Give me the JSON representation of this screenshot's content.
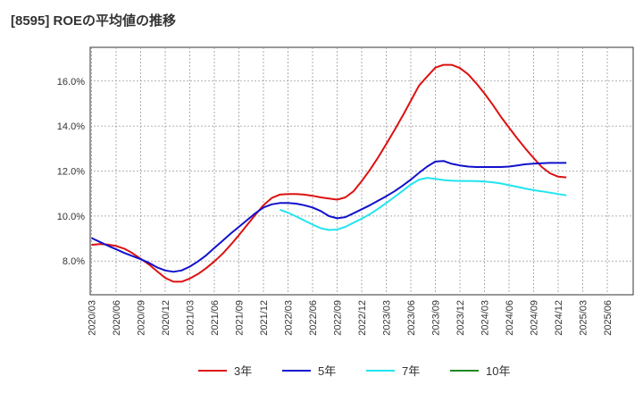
{
  "chart_data": {
    "type": "line",
    "title": "[8595]  ROEの平均値の推移",
    "xlabel": "",
    "ylabel": "",
    "ylim": [
      6.5,
      17.5
    ],
    "y_ticks": [
      8.0,
      10.0,
      12.0,
      14.0,
      16.0
    ],
    "y_tick_labels": [
      "8.0%",
      "10.0%",
      "12.0%",
      "14.0%",
      "16.0%"
    ],
    "grid": true,
    "legend_position": "bottom",
    "x_ticks": [
      "2020/03",
      "2020/06",
      "2020/09",
      "2020/12",
      "2021/03",
      "2021/06",
      "2021/09",
      "2021/12",
      "2022/03",
      "2022/06",
      "2022/09",
      "2022/12",
      "2023/03",
      "2023/06",
      "2023/09",
      "2023/12",
      "2024/03",
      "2024/06",
      "2024/09",
      "2024/12",
      "2025/03",
      "2025/06"
    ],
    "series": [
      {
        "name": "3年",
        "color": "#dd1111",
        "start_index": 0,
        "values": [
          8.72,
          8.75,
          8.73,
          8.67,
          8.55,
          8.35,
          8.1,
          7.85,
          7.55,
          7.25,
          7.08,
          7.08,
          7.22,
          7.42,
          7.68,
          7.98,
          8.32,
          8.72,
          9.15,
          9.6,
          10.05,
          10.48,
          10.8,
          10.95,
          10.98,
          10.98,
          10.95,
          10.9,
          10.83,
          10.78,
          10.73,
          10.83,
          11.1,
          11.55,
          12.05,
          12.6,
          13.2,
          13.82,
          14.45,
          15.12,
          15.8,
          16.2,
          16.6,
          16.72,
          16.72,
          16.58,
          16.3,
          15.9,
          15.45,
          14.95,
          14.42,
          13.93,
          13.45,
          13.0,
          12.58,
          12.18,
          11.9,
          11.75,
          11.72
        ]
      },
      {
        "name": "5年",
        "color": "#1111cc",
        "start_index": 0,
        "values": [
          9.02,
          8.85,
          8.68,
          8.52,
          8.36,
          8.22,
          8.08,
          7.92,
          7.72,
          7.58,
          7.52,
          7.58,
          7.75,
          7.98,
          8.25,
          8.58,
          8.9,
          9.22,
          9.52,
          9.82,
          10.12,
          10.38,
          10.52,
          10.58,
          10.58,
          10.55,
          10.48,
          10.38,
          10.22,
          10.0,
          9.9,
          9.95,
          10.12,
          10.3,
          10.48,
          10.68,
          10.88,
          11.1,
          11.35,
          11.62,
          11.92,
          12.2,
          12.42,
          12.45,
          12.32,
          12.25,
          12.2,
          12.18,
          12.18,
          12.18,
          12.18,
          12.2,
          12.25,
          12.3,
          12.33,
          12.35,
          12.36,
          12.36,
          12.36
        ]
      },
      {
        "name": "7年",
        "color": "#22e4f0",
        "start_index": 23,
        "values": [
          10.28,
          10.15,
          9.98,
          9.8,
          9.62,
          9.46,
          9.38,
          9.4,
          9.52,
          9.7,
          9.88,
          10.08,
          10.32,
          10.58,
          10.85,
          11.12,
          11.4,
          11.62,
          11.7,
          11.65,
          11.6,
          11.57,
          11.56,
          11.56,
          11.55,
          11.53,
          11.5,
          11.45,
          11.37,
          11.3,
          11.22,
          11.15,
          11.1,
          11.04,
          10.98,
          10.92
        ]
      },
      {
        "name": "10年",
        "color": "#228822",
        "start_index": 0,
        "values": []
      }
    ]
  }
}
